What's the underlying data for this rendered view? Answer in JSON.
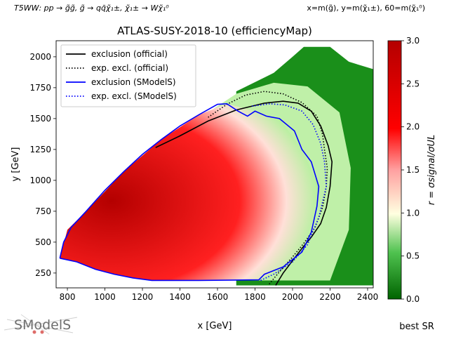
{
  "header": {
    "left_text": "T5WW: pp → g̃g̃, g̃ → qq̄χ̃₁±, χ̃₁± → Wχ̃₁⁰",
    "right_text": "x=m(g̃), y=m(χ̃₁±), 60=m(χ̃₁⁰)"
  },
  "footer": {
    "best_sr": "best SR",
    "logo_text": "SModelS"
  },
  "chart_data": {
    "type": "heatmap",
    "title": "ATLAS-SUSY-2018-10 (efficiencyMap)",
    "xlabel": "x [GeV]",
    "ylabel": "y [GeV]",
    "xlim": [
      740,
      2430
    ],
    "ylim": [
      130,
      2130
    ],
    "x_ticks": [
      800,
      1000,
      1200,
      1400,
      1600,
      1800,
      2000,
      2200,
      2400
    ],
    "y_ticks": [
      250,
      500,
      750,
      1000,
      1250,
      1500,
      1750,
      2000
    ],
    "grid": false,
    "colorbar": {
      "label": "r = σsignal/σUL",
      "range": [
        0,
        3
      ],
      "ticks": [
        "0.0",
        "0.5",
        "1.0",
        "1.5",
        "2.0",
        "2.5",
        "3.0"
      ],
      "colors": [
        "#006400",
        "#ffffe0",
        "#ff0000",
        "#b40000"
      ]
    },
    "legend": {
      "placement": "top-left",
      "entries": [
        {
          "label": "exclusion (official)",
          "color": "#000000",
          "style": "solid"
        },
        {
          "label": "exp. excl. (official)",
          "color": "#000000",
          "style": "dotted"
        },
        {
          "label": "exclusion (SModelS)",
          "color": "#0000ff",
          "style": "solid"
        },
        {
          "label": "exp. excl. (SModelS)",
          "color": "#0000ff",
          "style": "dotted"
        }
      ]
    },
    "series": [
      {
        "label": "exclusion (official)",
        "points": [
          [
            1270,
            1265
          ],
          [
            1400,
            1360
          ],
          [
            1550,
            1480
          ],
          [
            1700,
            1570
          ],
          [
            1850,
            1625
          ],
          [
            1950,
            1640
          ],
          [
            2030,
            1625
          ],
          [
            2100,
            1560
          ],
          [
            2150,
            1440
          ],
          [
            2190,
            1280
          ],
          [
            2210,
            1150
          ],
          [
            2200,
            950
          ],
          [
            2180,
            780
          ],
          [
            2150,
            650
          ],
          [
            2100,
            540
          ],
          [
            2050,
            450
          ],
          [
            2000,
            350
          ],
          [
            1950,
            250
          ],
          [
            1910,
            150
          ]
        ]
      },
      {
        "label": "exp. excl. (official)",
        "points": [
          [
            1550,
            1510
          ],
          [
            1650,
            1615
          ],
          [
            1750,
            1690
          ],
          [
            1850,
            1720
          ],
          [
            1950,
            1700
          ],
          [
            2050,
            1630
          ],
          [
            2130,
            1520
          ],
          [
            2160,
            1370
          ],
          [
            2170,
            1250
          ],
          [
            2185,
            1100
          ],
          [
            2180,
            950
          ],
          [
            2160,
            780
          ],
          [
            2120,
            620
          ],
          [
            2060,
            490
          ],
          [
            2000,
            380
          ],
          [
            1930,
            260
          ],
          [
            1870,
            150
          ]
        ]
      },
      {
        "label": "exclusion (SModelS)",
        "points": [
          [
            760,
            370
          ],
          [
            850,
            340
          ],
          [
            950,
            280
          ],
          [
            1050,
            240
          ],
          [
            1150,
            210
          ],
          [
            1250,
            190
          ],
          [
            1500,
            190
          ],
          [
            1820,
            195
          ],
          [
            1850,
            240
          ],
          [
            1950,
            300
          ],
          [
            2050,
            420
          ],
          [
            2100,
            580
          ],
          [
            2130,
            790
          ],
          [
            2140,
            950
          ],
          [
            2100,
            1150
          ],
          [
            2050,
            1250
          ],
          [
            2010,
            1400
          ],
          [
            1930,
            1500
          ],
          [
            1860,
            1520
          ],
          [
            1800,
            1560
          ],
          [
            1760,
            1520
          ],
          [
            1710,
            1560
          ],
          [
            1650,
            1620
          ],
          [
            1600,
            1615
          ],
          [
            1500,
            1530
          ],
          [
            1400,
            1440
          ],
          [
            1300,
            1330
          ],
          [
            1200,
            1210
          ],
          [
            1100,
            1070
          ],
          [
            1000,
            920
          ],
          [
            900,
            750
          ],
          [
            820,
            620
          ],
          [
            780,
            500
          ],
          [
            760,
            370
          ]
        ]
      },
      {
        "label": "exp. excl. (SModelS)",
        "points": [
          [
            1830,
            190
          ],
          [
            1900,
            240
          ],
          [
            2000,
            340
          ],
          [
            2080,
            480
          ],
          [
            2140,
            700
          ],
          [
            2180,
            950
          ],
          [
            2170,
            1150
          ],
          [
            2150,
            1300
          ],
          [
            2110,
            1450
          ],
          [
            2050,
            1560
          ],
          [
            1960,
            1610
          ],
          [
            1880,
            1620
          ],
          [
            1780,
            1600
          ]
        ]
      }
    ]
  }
}
